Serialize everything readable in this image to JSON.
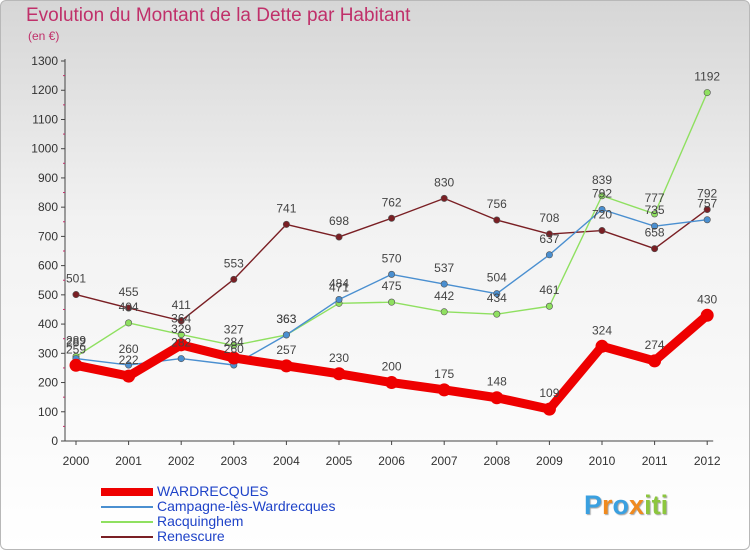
{
  "chart_data": {
    "type": "line",
    "title": "Evolution du Montant de la Dette par Habitant",
    "subtitle": "(en €)",
    "xlabel": "",
    "ylabel": "",
    "categories": [
      "2000",
      "2001",
      "2002",
      "2003",
      "2004",
      "2005",
      "2006",
      "2007",
      "2008",
      "2009",
      "2010",
      "2011",
      "2012"
    ],
    "yticks": [
      "0",
      "100",
      "200",
      "300",
      "400",
      "500",
      "600",
      "700",
      "800",
      "900",
      "1000",
      "1100",
      "1200",
      "1300"
    ],
    "ylim": [
      0,
      1300
    ],
    "grid": false,
    "legend_position": "bottom-left",
    "series": [
      {
        "name": "WARDRECQUES",
        "color": "#ee0000",
        "values": [
          259,
          222,
          329,
          284,
          257,
          230,
          200,
          175,
          148,
          109,
          324,
          274,
          430
        ]
      },
      {
        "name": "Campagne-lès-Wardrecques",
        "color": "#4a8fd0",
        "values": [
          282,
          260,
          282,
          260,
          363,
          484,
          570,
          537,
          504,
          637,
          792,
          735,
          757
        ]
      },
      {
        "name": "Racquinghem",
        "color": "#8fe060",
        "values": [
          289,
          404,
          364,
          327,
          363,
          471,
          475,
          442,
          434,
          461,
          839,
          777,
          1192
        ]
      },
      {
        "name": "Renescure",
        "color": "#7a1f24",
        "values": [
          501,
          455,
          411,
          553,
          741,
          698,
          762,
          830,
          756,
          708,
          720,
          658,
          792
        ]
      }
    ]
  },
  "logo": {
    "letters": [
      "P",
      "r",
      "o",
      "x",
      "i",
      "t",
      "i"
    ],
    "colors": [
      "#3aa0e0",
      "#f08a1e",
      "#3aa0e0",
      "#f08a1e",
      "#8cc63e",
      "#8cc63e",
      "#8cc63e"
    ]
  }
}
